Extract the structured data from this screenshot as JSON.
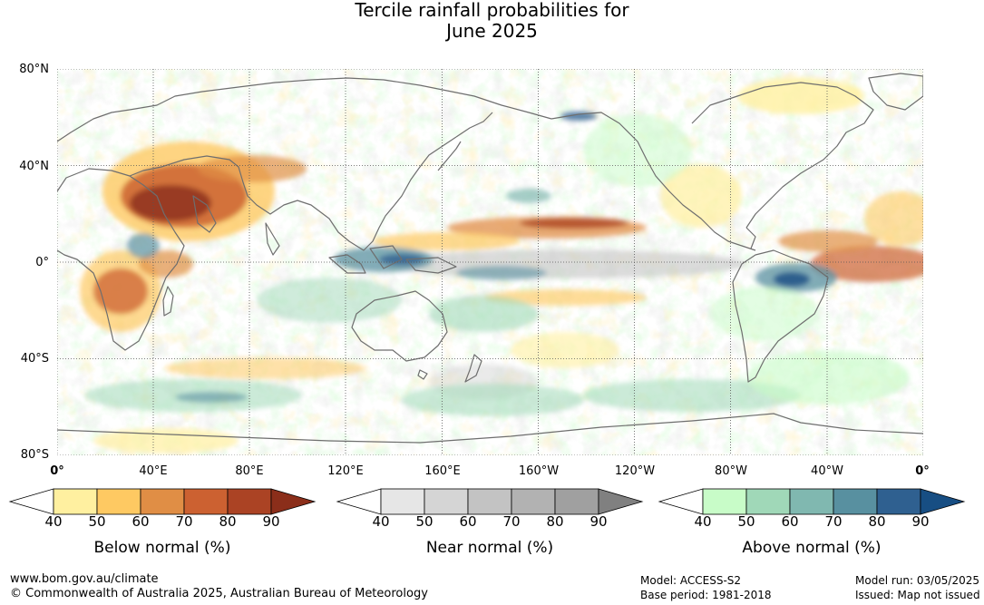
{
  "title": {
    "line1": "Tercile rainfall probabilities for",
    "line2": "June 2025"
  },
  "map": {
    "lat_labels": [
      "80°N",
      "40°N",
      "0°",
      "40°S",
      "80°S"
    ],
    "lon_labels": [
      "0°",
      "40°E",
      "80°E",
      "120°E",
      "160°E",
      "160°W",
      "120°W",
      "80°W",
      "40°W",
      "0°"
    ]
  },
  "legends": [
    {
      "title": "Below normal (%)",
      "ticks": [
        "40",
        "50",
        "60",
        "70",
        "80",
        "90"
      ],
      "colors": [
        "#ffffff",
        "#fff0a0",
        "#fec962",
        "#e08e45",
        "#cc6131",
        "#ab4324",
        "#8b2e1a"
      ]
    },
    {
      "title": "Near normal (%)",
      "ticks": [
        "40",
        "50",
        "60",
        "70",
        "80",
        "90"
      ],
      "colors": [
        "#ffffff",
        "#e6e6e6",
        "#d5d5d5",
        "#c3c3c3",
        "#b2b2b2",
        "#a0a0a0",
        "#808080"
      ]
    },
    {
      "title": "Above normal (%)",
      "ticks": [
        "40",
        "50",
        "60",
        "70",
        "80",
        "90"
      ],
      "colors": [
        "#ffffff",
        "#c8fcc8",
        "#a0d8b8",
        "#80b8b0",
        "#5890a0",
        "#2f6090",
        "#174e83"
      ]
    }
  ],
  "footer": {
    "website": "www.bom.gov.au/climate",
    "copyright": "© Commonwealth of Australia 2025, Australian Bureau of Meteorology",
    "model": "Model: ACCESS-S2",
    "base_period": "Base period: 1981-2018",
    "model_run": "Model run: 03/05/2025",
    "issued": "Issued: Map not issued"
  }
}
